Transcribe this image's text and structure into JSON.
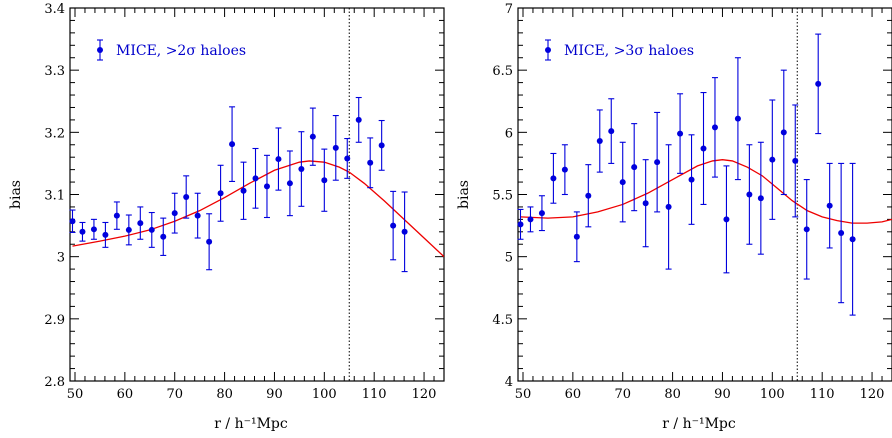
{
  "chart_data": [
    {
      "type": "scatter",
      "xlabel": "r / h⁻¹Mpc",
      "ylabel": "bias",
      "xlim": [
        49,
        124
      ],
      "ylim": [
        2.8,
        3.4
      ],
      "xticks": [
        50,
        60,
        70,
        80,
        90,
        100,
        110,
        120
      ],
      "yticks": [
        2.8,
        2.9,
        3.0,
        3.1,
        3.2,
        3.3,
        3.4
      ],
      "ytick_labels": [
        "2.8",
        "2.9",
        "3",
        "3.1",
        "3.2",
        "3.3",
        "3.4"
      ],
      "grid": false,
      "legend_position": "top-left",
      "vline_x": 105,
      "colors": {
        "points": "#0000dd",
        "model": "#ee0000",
        "vline": "#000000"
      },
      "series": [
        {
          "name": "MICE, >2σ haloes",
          "kind": "points-with-errorbars",
          "x": [
            49.5,
            51.5,
            53.8,
            56.1,
            58.4,
            60.8,
            63.1,
            65.4,
            67.7,
            70.0,
            72.3,
            74.6,
            76.9,
            79.2,
            81.5,
            83.8,
            86.2,
            88.5,
            90.8,
            93.1,
            95.4,
            97.7,
            100.0,
            102.3,
            104.6,
            106.9,
            109.2,
            111.5,
            113.8,
            116.1
          ],
          "y": [
            3.057,
            3.04,
            3.044,
            3.035,
            3.066,
            3.043,
            3.054,
            3.043,
            3.032,
            3.07,
            3.096,
            3.066,
            3.024,
            3.102,
            3.181,
            3.106,
            3.126,
            3.113,
            3.157,
            3.118,
            3.141,
            3.193,
            3.123,
            3.175,
            3.158,
            3.22,
            3.151,
            3.179,
            3.05,
            3.04
          ],
          "yerr": [
            0.018,
            0.015,
            0.016,
            0.02,
            0.022,
            0.024,
            0.026,
            0.028,
            0.03,
            0.032,
            0.034,
            0.036,
            0.045,
            0.045,
            0.06,
            0.046,
            0.048,
            0.05,
            0.05,
            0.052,
            0.06,
            0.046,
            0.05,
            0.052,
            0.032,
            0.036,
            0.04,
            0.04,
            0.055,
            0.064
          ]
        },
        {
          "name": "model",
          "kind": "line",
          "x": [
            49.5,
            55,
            60,
            65,
            70,
            75,
            80,
            85,
            90,
            95,
            97,
            100,
            103,
            105,
            108,
            112,
            116,
            120,
            124
          ],
          "y": [
            3.017,
            3.025,
            3.033,
            3.043,
            3.057,
            3.074,
            3.095,
            3.118,
            3.139,
            3.152,
            3.154,
            3.152,
            3.144,
            3.136,
            3.118,
            3.09,
            3.06,
            3.03,
            3.0
          ]
        }
      ]
    },
    {
      "type": "scatter",
      "xlabel": "r / h⁻¹Mpc",
      "ylabel": "bias",
      "xlim": [
        49,
        124
      ],
      "ylim": [
        4,
        7
      ],
      "xticks": [
        50,
        60,
        70,
        80,
        90,
        100,
        110,
        120
      ],
      "yticks": [
        4,
        4.5,
        5,
        5.5,
        6,
        6.5,
        7
      ],
      "ytick_labels": [
        "4",
        "4.5",
        "5",
        "5.5",
        "6",
        "6.5",
        "7"
      ],
      "grid": false,
      "legend_position": "top-left",
      "vline_x": 105,
      "colors": {
        "points": "#0000dd",
        "model": "#ee0000",
        "vline": "#000000"
      },
      "series": [
        {
          "name": "MICE, >3σ haloes",
          "kind": "points-with-errorbars",
          "x": [
            49.5,
            51.5,
            53.8,
            56.1,
            58.4,
            60.8,
            63.1,
            65.4,
            67.7,
            70.0,
            72.3,
            74.6,
            76.9,
            79.2,
            81.5,
            83.8,
            86.2,
            88.5,
            90.8,
            93.1,
            95.4,
            97.7,
            100.0,
            102.3,
            104.6,
            106.9,
            109.2,
            111.5,
            113.8,
            116.1
          ],
          "y": [
            5.26,
            5.3,
            5.35,
            5.63,
            5.7,
            5.16,
            5.49,
            5.93,
            6.01,
            5.6,
            5.72,
            5.43,
            5.76,
            5.4,
            5.99,
            5.62,
            5.87,
            6.04,
            5.3,
            6.11,
            5.5,
            5.47,
            5.78,
            6.0,
            5.77,
            5.22,
            6.39,
            5.41,
            5.19,
            5.14
          ],
          "yerr": [
            0.12,
            0.1,
            0.14,
            0.2,
            0.2,
            0.2,
            0.25,
            0.25,
            0.26,
            0.32,
            0.35,
            0.35,
            0.4,
            0.5,
            0.32,
            0.36,
            0.45,
            0.4,
            0.43,
            0.49,
            0.4,
            0.45,
            0.48,
            0.5,
            0.45,
            0.4,
            0.4,
            0.34,
            0.56,
            0.61
          ]
        },
        {
          "name": "model",
          "kind": "line",
          "x": [
            49.5,
            55,
            60,
            65,
            70,
            75,
            80,
            85,
            88,
            90,
            92,
            95,
            98,
            101,
            104,
            107,
            110,
            113,
            116,
            119,
            122,
            124
          ],
          "y": [
            5.32,
            5.31,
            5.32,
            5.36,
            5.42,
            5.51,
            5.62,
            5.73,
            5.77,
            5.78,
            5.77,
            5.72,
            5.65,
            5.55,
            5.45,
            5.37,
            5.32,
            5.29,
            5.27,
            5.27,
            5.28,
            5.3
          ]
        }
      ]
    }
  ]
}
